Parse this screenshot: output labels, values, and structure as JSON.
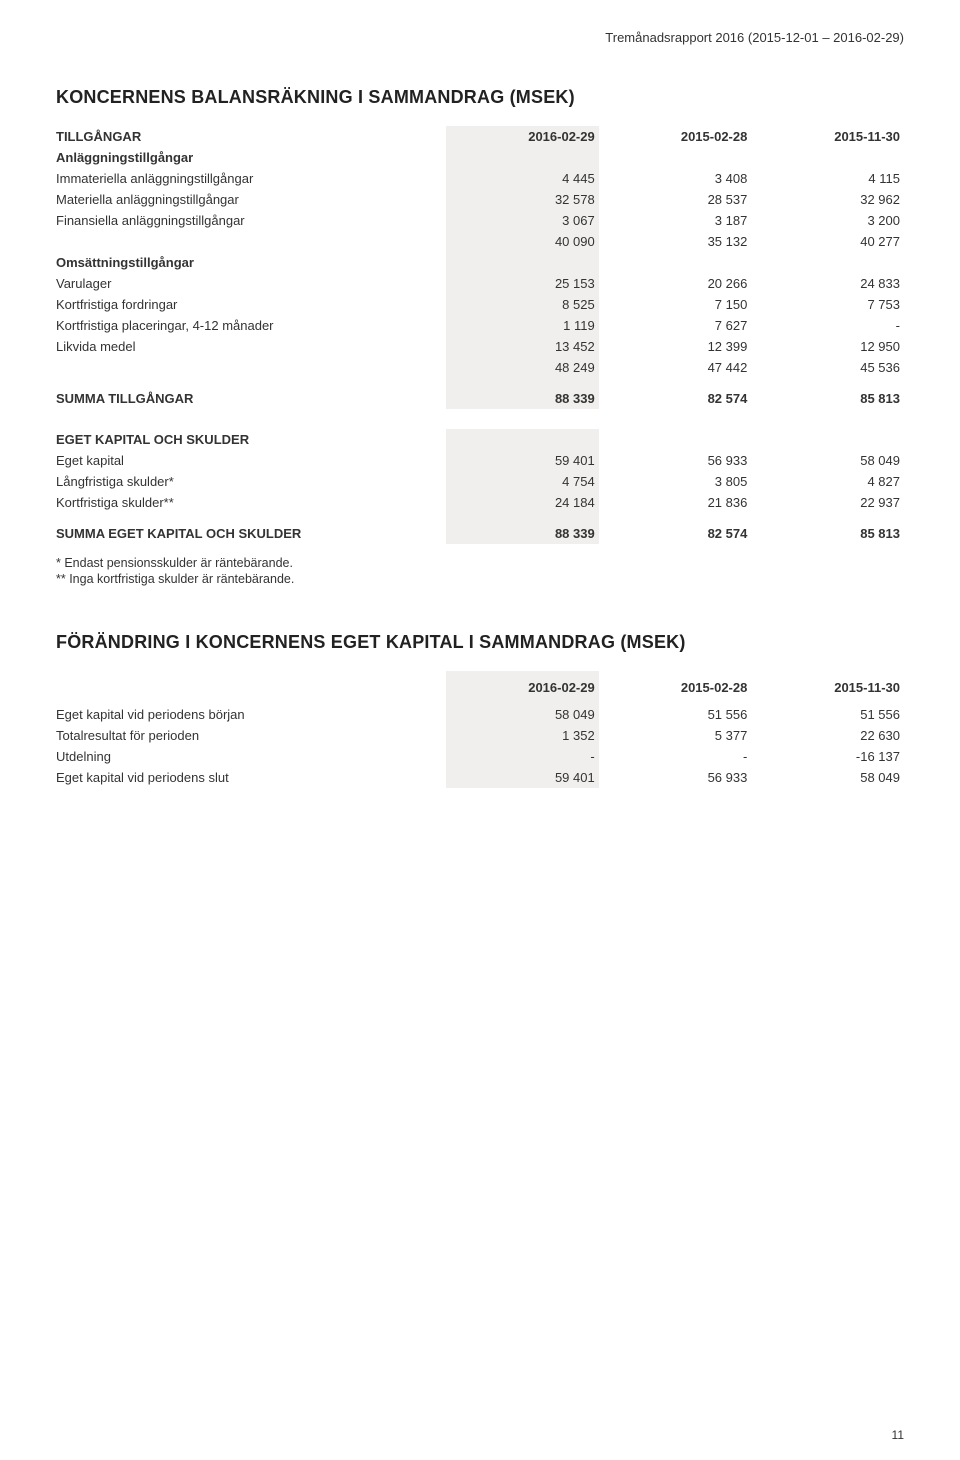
{
  "header": {
    "report_title": "Tremånadsrapport 2016 (2015-12-01 – 2016-02-29)"
  },
  "section1": {
    "title": "KONCERNENS BALANSRÄKNING I SAMMANDRAG (MSEK)",
    "cols": [
      "2016-02-29",
      "2015-02-28",
      "2015-11-30"
    ],
    "groups": {
      "tillgangar_label": "TILLGÅNGAR",
      "anl_label": "Anläggningstillgångar",
      "anl_rows": [
        {
          "label": "Immateriella anläggningstillgångar",
          "v": [
            "4 445",
            "3 408",
            "4 115"
          ]
        },
        {
          "label": "Materiella anläggningstillgångar",
          "v": [
            "32 578",
            "28 537",
            "32 962"
          ]
        },
        {
          "label": "Finansiella anläggningstillgångar",
          "v": [
            "3 067",
            "3 187",
            "3 200"
          ]
        }
      ],
      "anl_sub": [
        "40 090",
        "35 132",
        "40 277"
      ],
      "oms_label": "Omsättningstillgångar",
      "oms_rows": [
        {
          "label": "Varulager",
          "v": [
            "25 153",
            "20 266",
            "24 833"
          ]
        },
        {
          "label": "Kortfristiga fordringar",
          "v": [
            "8 525",
            "7 150",
            "7 753"
          ]
        },
        {
          "label": "Kortfristiga placeringar, 4-12 månader",
          "v": [
            "1 119",
            "7 627",
            "-"
          ]
        },
        {
          "label": "Likvida medel",
          "v": [
            "13 452",
            "12 399",
            "12 950"
          ]
        }
      ],
      "oms_sub": [
        "48 249",
        "47 442",
        "45 536"
      ],
      "summa_tillg_label": "SUMMA TILLGÅNGAR",
      "summa_tillg": [
        "88 339",
        "82 574",
        "85 813"
      ],
      "ek_label": "EGET KAPITAL OCH SKULDER",
      "ek_rows": [
        {
          "label": "Eget kapital",
          "v": [
            "59 401",
            "56 933",
            "58 049"
          ]
        },
        {
          "label": "Långfristiga skulder*",
          "v": [
            "4 754",
            "3 805",
            "4 827"
          ]
        },
        {
          "label": "Kortfristiga skulder**",
          "v": [
            "24 184",
            "21 836",
            "22 937"
          ]
        }
      ],
      "summa_ek_label": "SUMMA EGET KAPITAL OCH SKULDER",
      "summa_ek": [
        "88 339",
        "82 574",
        "85 813"
      ]
    },
    "footnotes": [
      "* Endast pensionsskulder är räntebärande.",
      "** Inga kortfristiga skulder är räntebärande."
    ]
  },
  "section2": {
    "title": "FÖRÄNDRING I KONCERNENS EGET KAPITAL I SAMMANDRAG (MSEK)",
    "cols": [
      "2016-02-29",
      "2015-02-28",
      "2015-11-30"
    ],
    "rows": [
      {
        "label": "Eget kapital vid periodens början",
        "v": [
          "58 049",
          "51 556",
          "51 556"
        ]
      },
      {
        "label": "Totalresultat för perioden",
        "v": [
          "1 352",
          "5 377",
          "22 630"
        ]
      },
      {
        "label": "Utdelning",
        "v": [
          "-",
          "-",
          "-16 137"
        ]
      },
      {
        "label": "Eget kapital vid periodens slut",
        "v": [
          "59 401",
          "56 933",
          "58 049"
        ]
      }
    ]
  },
  "page_number": "11",
  "colors": {
    "shade": "#f0efed",
    "text": "#333333",
    "bg": "#ffffff"
  }
}
